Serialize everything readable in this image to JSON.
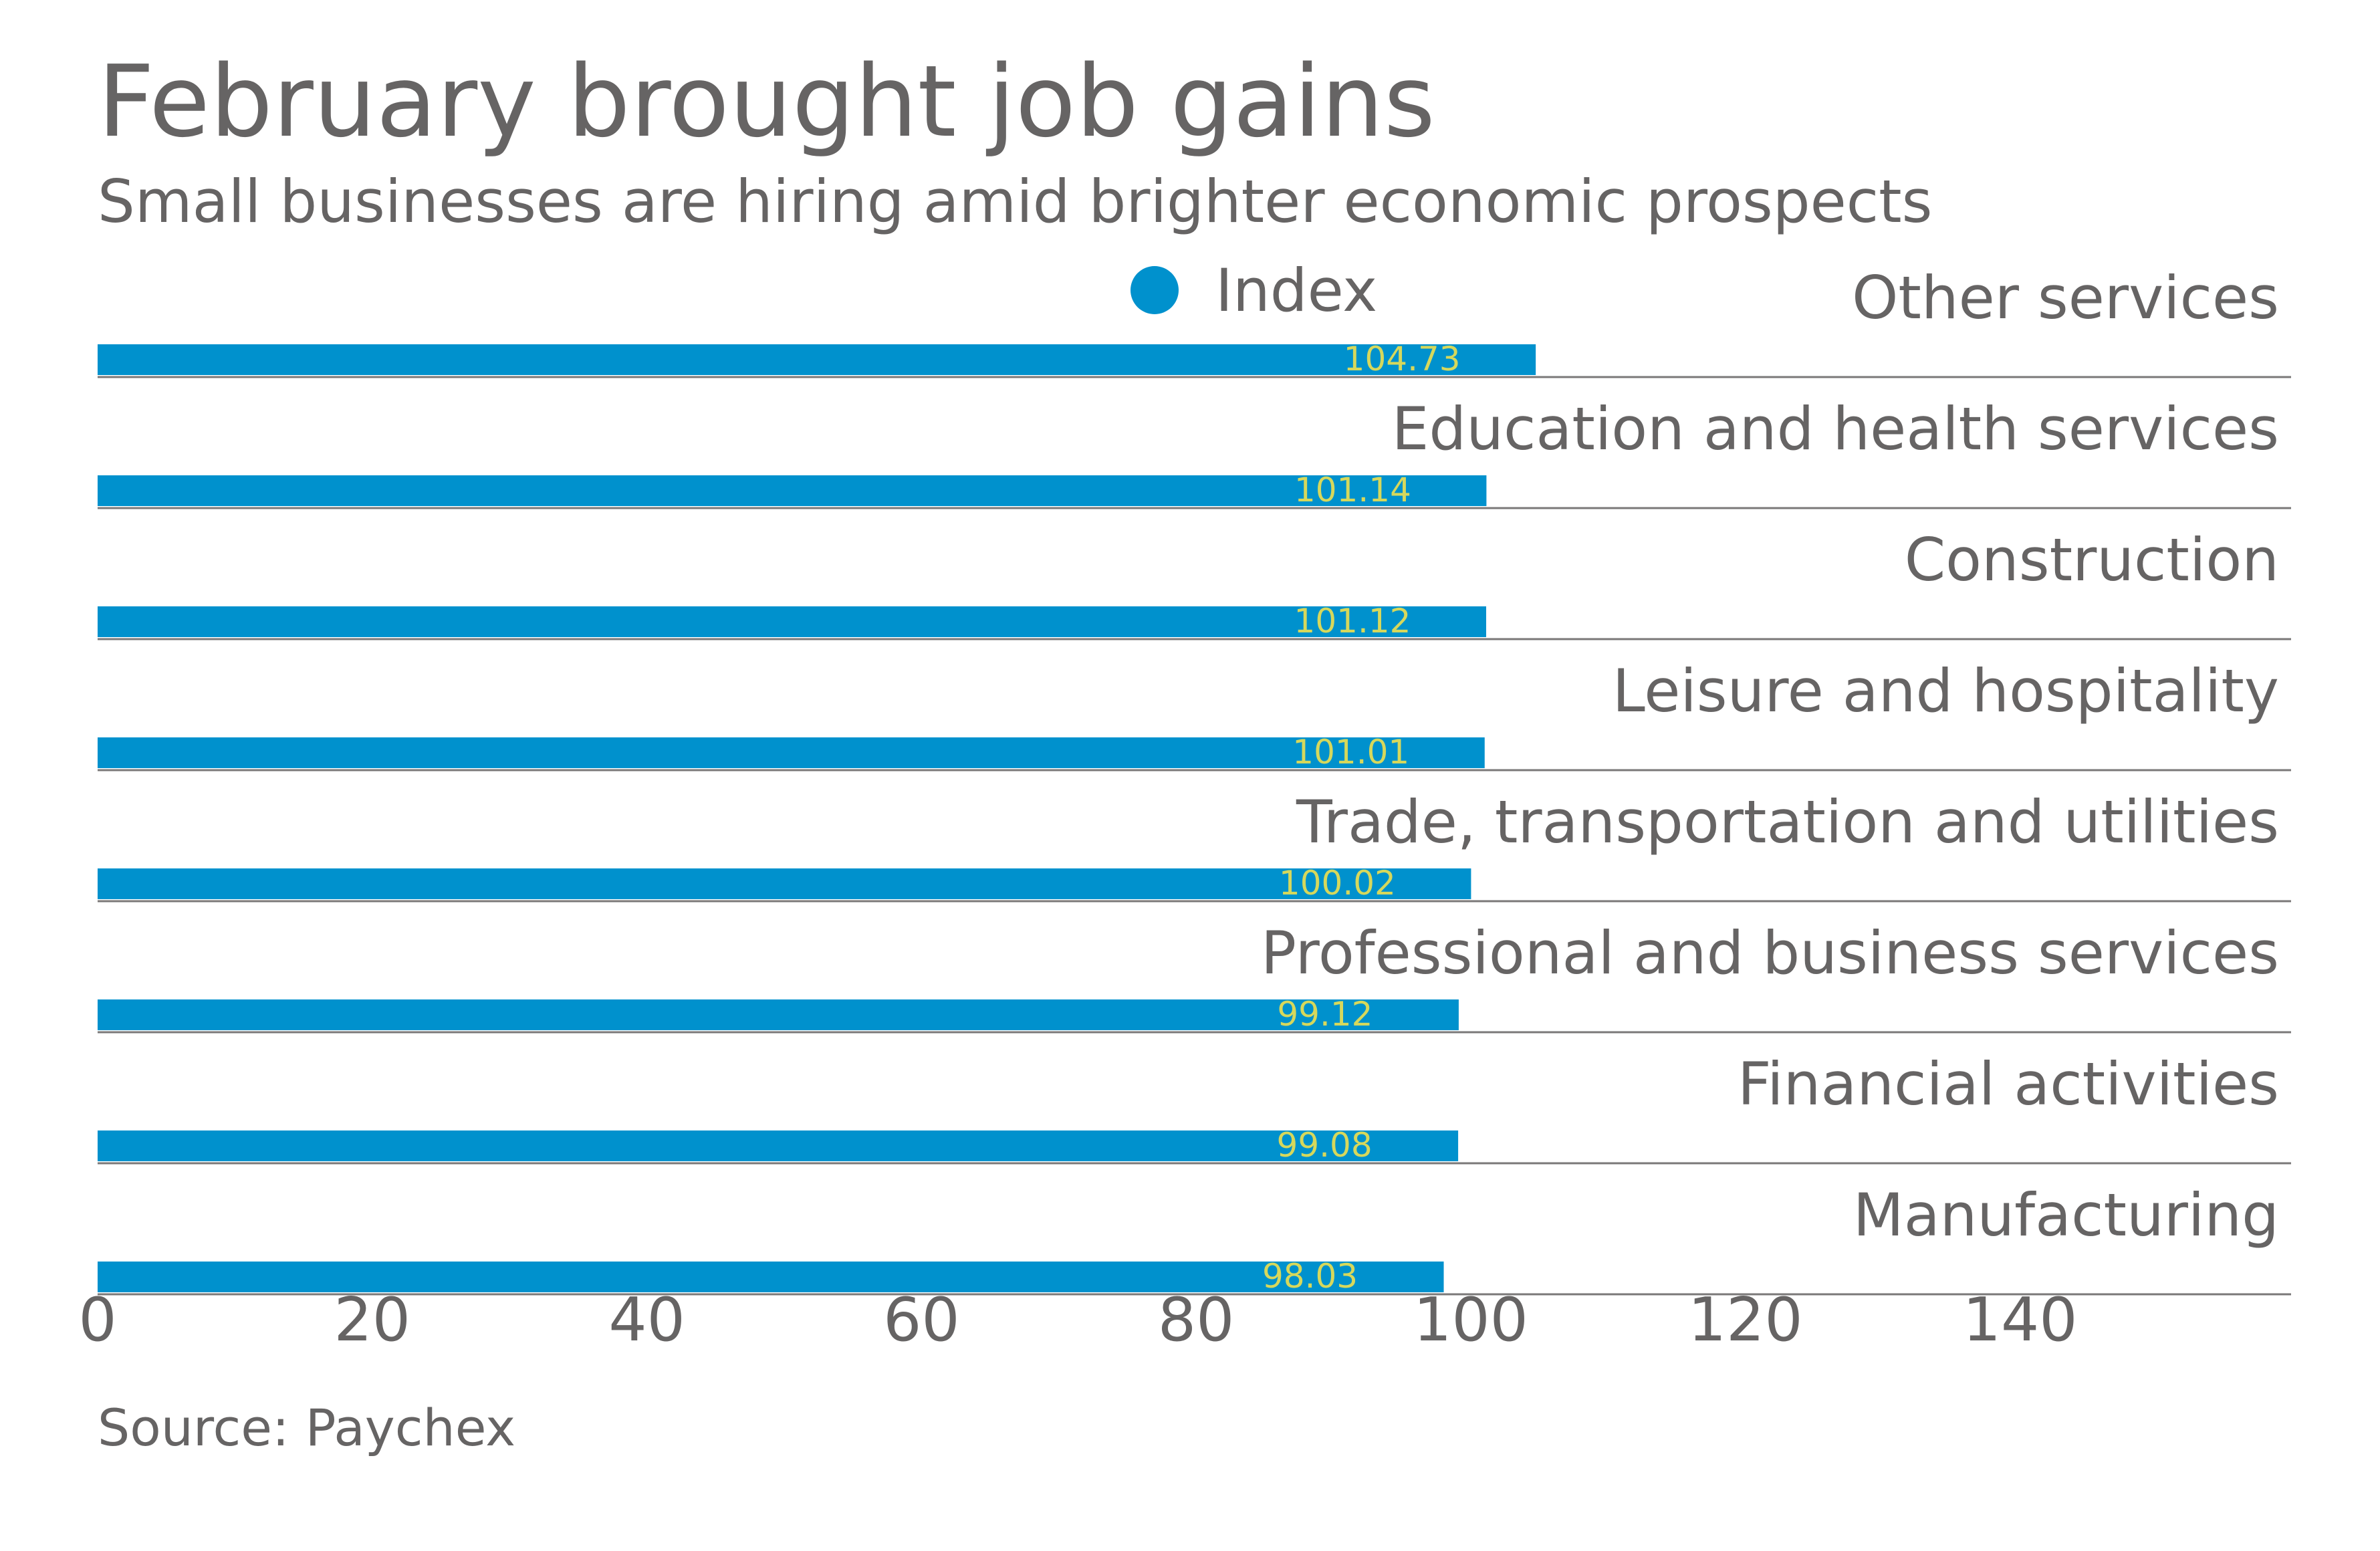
{
  "chart_data": {
    "type": "bar",
    "orientation": "horizontal",
    "title": "February brought job gains",
    "subtitle": "Small businesses are hiring amid brighter economic prospects",
    "categories": [
      "Other services",
      "Education and health services",
      "Construction",
      "Leisure and hospitality",
      "Trade, transportation and utilities",
      "Professional and business services",
      "Financial activities",
      "Manufacturing"
    ],
    "series": [
      {
        "name": "Index",
        "color": "#0091cd",
        "values": [
          104.73,
          101.14,
          101.12,
          101.01,
          100.02,
          99.12,
          99.08,
          98.03
        ],
        "labels": [
          "104.73",
          "101.14",
          "101.12",
          "101.01",
          "100.02",
          "99.12",
          "99.08",
          "98.03"
        ]
      }
    ],
    "xlabel": "",
    "ylabel": "",
    "xlim": [
      0,
      160
    ],
    "xticks": [
      0,
      20,
      40,
      60,
      80,
      100,
      120,
      140
    ],
    "xtick_labels": [
      "0",
      "20",
      "40",
      "60",
      "80",
      "100",
      "120",
      "140"
    ],
    "grid": false,
    "legend": {
      "position": "top",
      "entries": [
        "Index"
      ]
    },
    "value_label_color": "#d6d85c",
    "source": "Source: Paychex"
  }
}
